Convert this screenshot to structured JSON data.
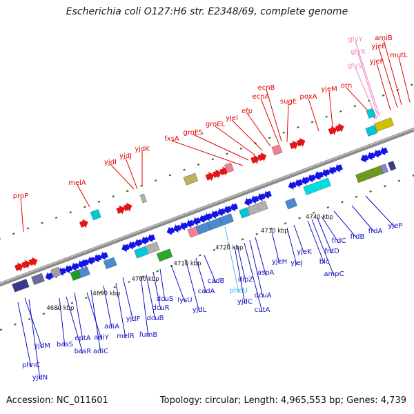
{
  "title": "Escherichia coli O127:H6 str. E2348/69, complete genome",
  "footer": {
    "accession": "Accession: NC_011601",
    "summary": "Topology: circular; Length: 4,965,553 bp; Genes: 4,739"
  },
  "colors": {
    "forward_label": "#e00000",
    "reverse_label": "#1010c0",
    "trna_label": "#f080c0",
    "rrna_label": "#40c0e0",
    "backbone": "#8a8a8a",
    "tick_dots": "#1e7a1e"
  },
  "kbp_ticks": [
    "4680 kbp",
    "4690 kbp",
    "4700 kbp",
    "4710 kbp",
    "4720 kbp",
    "4730 kbp",
    "4740 kbp"
  ],
  "forward_genes": [
    "proP",
    "melA",
    "yjdI",
    "yjdJ",
    "yjdK",
    "fxsA",
    "groES",
    "groEL",
    "yjeI",
    "efp",
    "ecnA",
    "ecnB",
    "sugE",
    "poxA",
    "yjeM",
    "orn",
    "glyV",
    "glyX",
    "glyY",
    "yjeF",
    "yjeE",
    "amiB",
    "mutL"
  ],
  "reverse_genes": [
    "yjdM",
    "phnC",
    "yjdN",
    "basS",
    "basR",
    "eptA",
    "adiY",
    "adiC",
    "adiA",
    "melR",
    "yjdF",
    "fumB",
    "dcuB",
    "dcuR",
    "dcuS",
    "lysU",
    "yjdL",
    "cadA",
    "cadB",
    "pheU",
    "yjdC",
    "dipZ",
    "cutA",
    "dcuA",
    "aspA",
    "yjeH",
    "yjeJ",
    "yjeK",
    "blc",
    "ampC",
    "frdD",
    "frdC",
    "frdB",
    "frdA",
    "yjeP"
  ]
}
